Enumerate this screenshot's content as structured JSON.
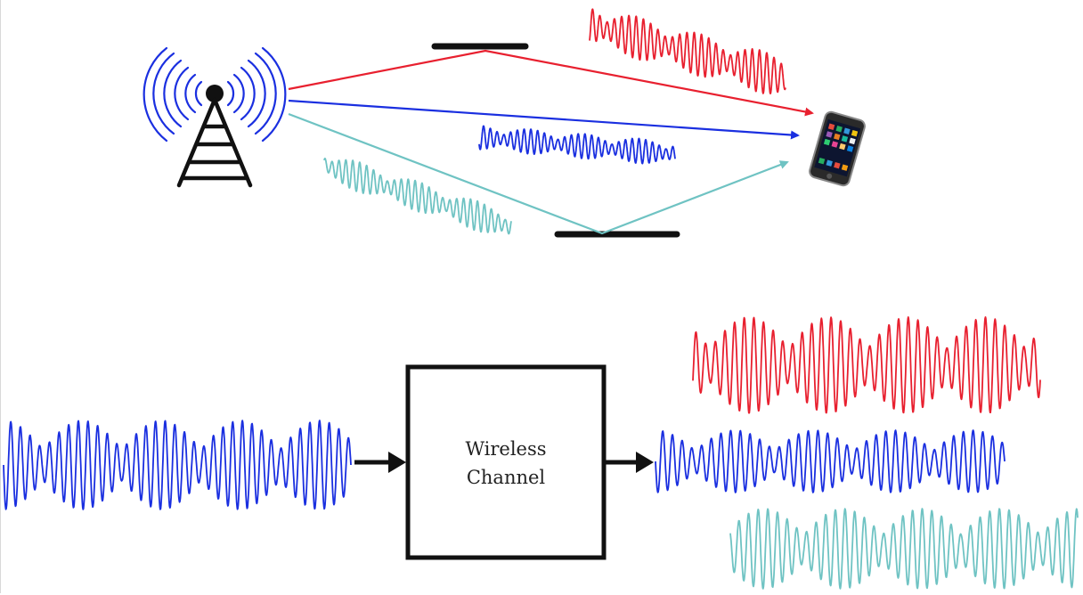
{
  "colors": {
    "path_red": "#e8202f",
    "path_blue": "#1a2fe0",
    "path_teal": "#6fc3c3",
    "ink": "#111111",
    "phone_body": "#2a2a2a"
  },
  "icons": {
    "transmitter": "radio-tower-icon",
    "receiver": "smartphone-icon"
  },
  "channel_box": {
    "label_line1": "Wireless",
    "label_line2": "Channel"
  }
}
